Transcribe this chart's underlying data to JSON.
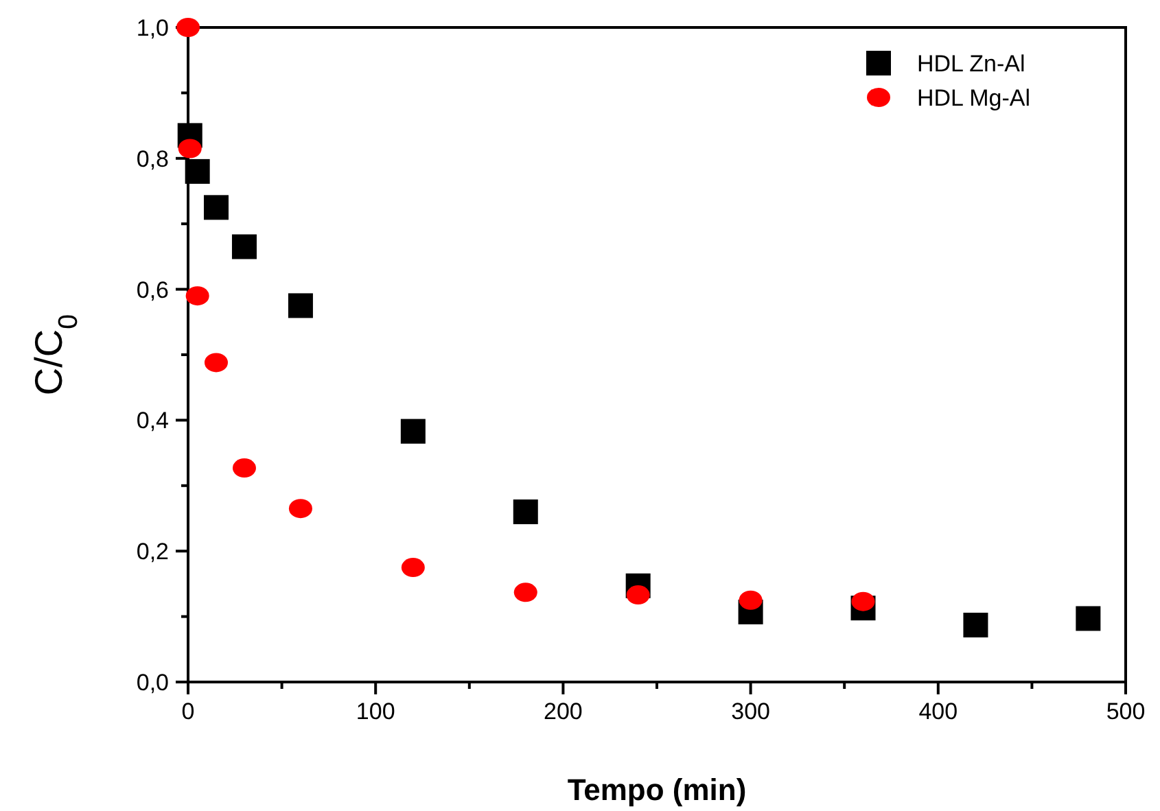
{
  "chart_data": {
    "type": "scatter",
    "xlabel": "Tempo (min)",
    "ylabel": "C/C$_{0}$",
    "xlim": [
      0,
      500
    ],
    "ylim": [
      0,
      1
    ],
    "xticks": [
      0,
      {
        "value": 50,
        "label": null
      },
      100,
      {
        "value": 150,
        "label": null
      },
      200,
      {
        "value": 250,
        "label": null
      },
      300,
      {
        "value": 350,
        "label": null
      },
      400,
      {
        "value": 450,
        "label": null
      },
      500
    ],
    "yticks": [
      {
        "value": 0,
        "label": "0,0"
      },
      {
        "value": 0.1,
        "label": null
      },
      {
        "value": 0.2,
        "label": "0,2"
      },
      {
        "value": 0.3,
        "label": null
      },
      {
        "value": 0.4,
        "label": "0,4"
      },
      {
        "value": 0.5,
        "label": null
      },
      {
        "value": 0.6,
        "label": "0,6"
      },
      {
        "value": 0.7,
        "label": null
      },
      {
        "value": 0.8,
        "label": "0,8"
      },
      {
        "value": 0.9,
        "label": null
      },
      {
        "value": 1,
        "label": "1,0"
      }
    ],
    "legend": "top right",
    "grid": false,
    "series": [
      {
        "name": "HDL Zn-Al",
        "color": "#000000",
        "marker": "square",
        "x": [
          1,
          5,
          15,
          30,
          60,
          120,
          180,
          240,
          300,
          360,
          420,
          480
        ],
        "values": [
          0.835,
          0.78,
          0.725,
          0.665,
          0.575,
          0.383,
          0.26,
          0.147,
          0.107,
          0.113,
          0.087,
          0.097
        ]
      },
      {
        "name": "HDL Mg-Al",
        "color": "#ff0000",
        "marker": "circle",
        "x": [
          0,
          1,
          5,
          15,
          30,
          60,
          120,
          180,
          240,
          300,
          360
        ],
        "values": [
          1.0,
          0.815,
          0.59,
          0.488,
          0.327,
          0.265,
          0.175,
          0.137,
          0.133,
          0.125,
          0.123
        ]
      }
    ]
  }
}
